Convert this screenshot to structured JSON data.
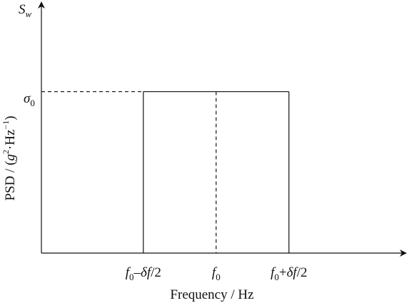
{
  "chart_data": {
    "type": "area",
    "xlabel": "Frequency / Hz",
    "ylabel": {
      "text": "PSD / (",
      "g": "g",
      "g_sup": "2",
      "dot": "·Hz",
      "hz_sup": "−1",
      "close": ")"
    },
    "y_axis_symbol": {
      "main": "S",
      "sub": "w"
    },
    "y_level_label": {
      "main": "σ",
      "sub": "0"
    },
    "x_ticks": [
      {
        "main": "f",
        "sub": "0",
        "rest_pre": "–",
        "rest_ital": "δf",
        "rest_post": "/2"
      },
      {
        "main": "f",
        "sub": "0",
        "rest_pre": "",
        "rest_ital": "",
        "rest_post": ""
      },
      {
        "main": "f",
        "sub": "0",
        "rest_pre": "+",
        "rest_ital": "δf",
        "rest_post": "/2"
      }
    ],
    "band": {
      "x_start": -0.5,
      "x_center": 0,
      "x_end": 0.5,
      "level": 1
    },
    "xlim": [
      -1.2,
      1.3
    ],
    "ylim": [
      0,
      1.55
    ],
    "grid": false
  },
  "colors": {
    "line": "#111111",
    "background": "#ffffff"
  }
}
